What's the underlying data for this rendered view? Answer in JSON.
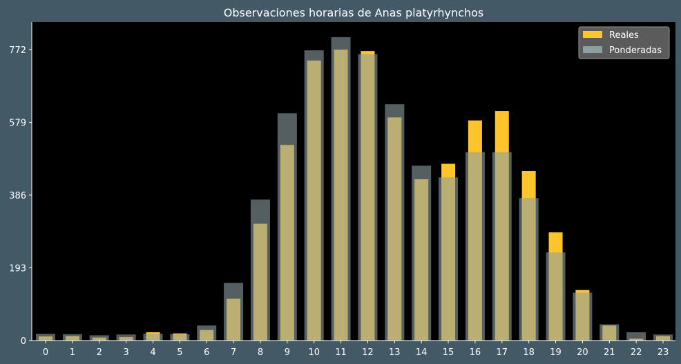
{
  "chart_data": {
    "type": "bar",
    "title": "Observaciones horarias de Anas platyrhynchos",
    "xlabel": "",
    "ylabel": "",
    "categories": [
      "0",
      "1",
      "2",
      "3",
      "4",
      "5",
      "6",
      "7",
      "8",
      "9",
      "10",
      "11",
      "12",
      "13",
      "14",
      "15",
      "16",
      "17",
      "18",
      "19",
      "20",
      "21",
      "22",
      "23"
    ],
    "yticks": [
      0,
      193,
      386,
      579,
      772
    ],
    "ylim": [
      0,
      845
    ],
    "grid": false,
    "legend_position": "top-right",
    "series": [
      {
        "name": "Reales",
        "color": "#ffc52b",
        "values": [
          11,
          12,
          8,
          9,
          22,
          19,
          28,
          111,
          310,
          519,
          743,
          772,
          768,
          592,
          428,
          469,
          584,
          609,
          450,
          287,
          134,
          40,
          5,
          12
        ]
      },
      {
        "name": "Ponderadas",
        "color": "#8e9ea1",
        "values": [
          18,
          17,
          14,
          16,
          18,
          17,
          40,
          153,
          374,
          603,
          770,
          805,
          760,
          627,
          464,
          433,
          500,
          500,
          378,
          234,
          127,
          43,
          22,
          16
        ]
      }
    ]
  }
}
